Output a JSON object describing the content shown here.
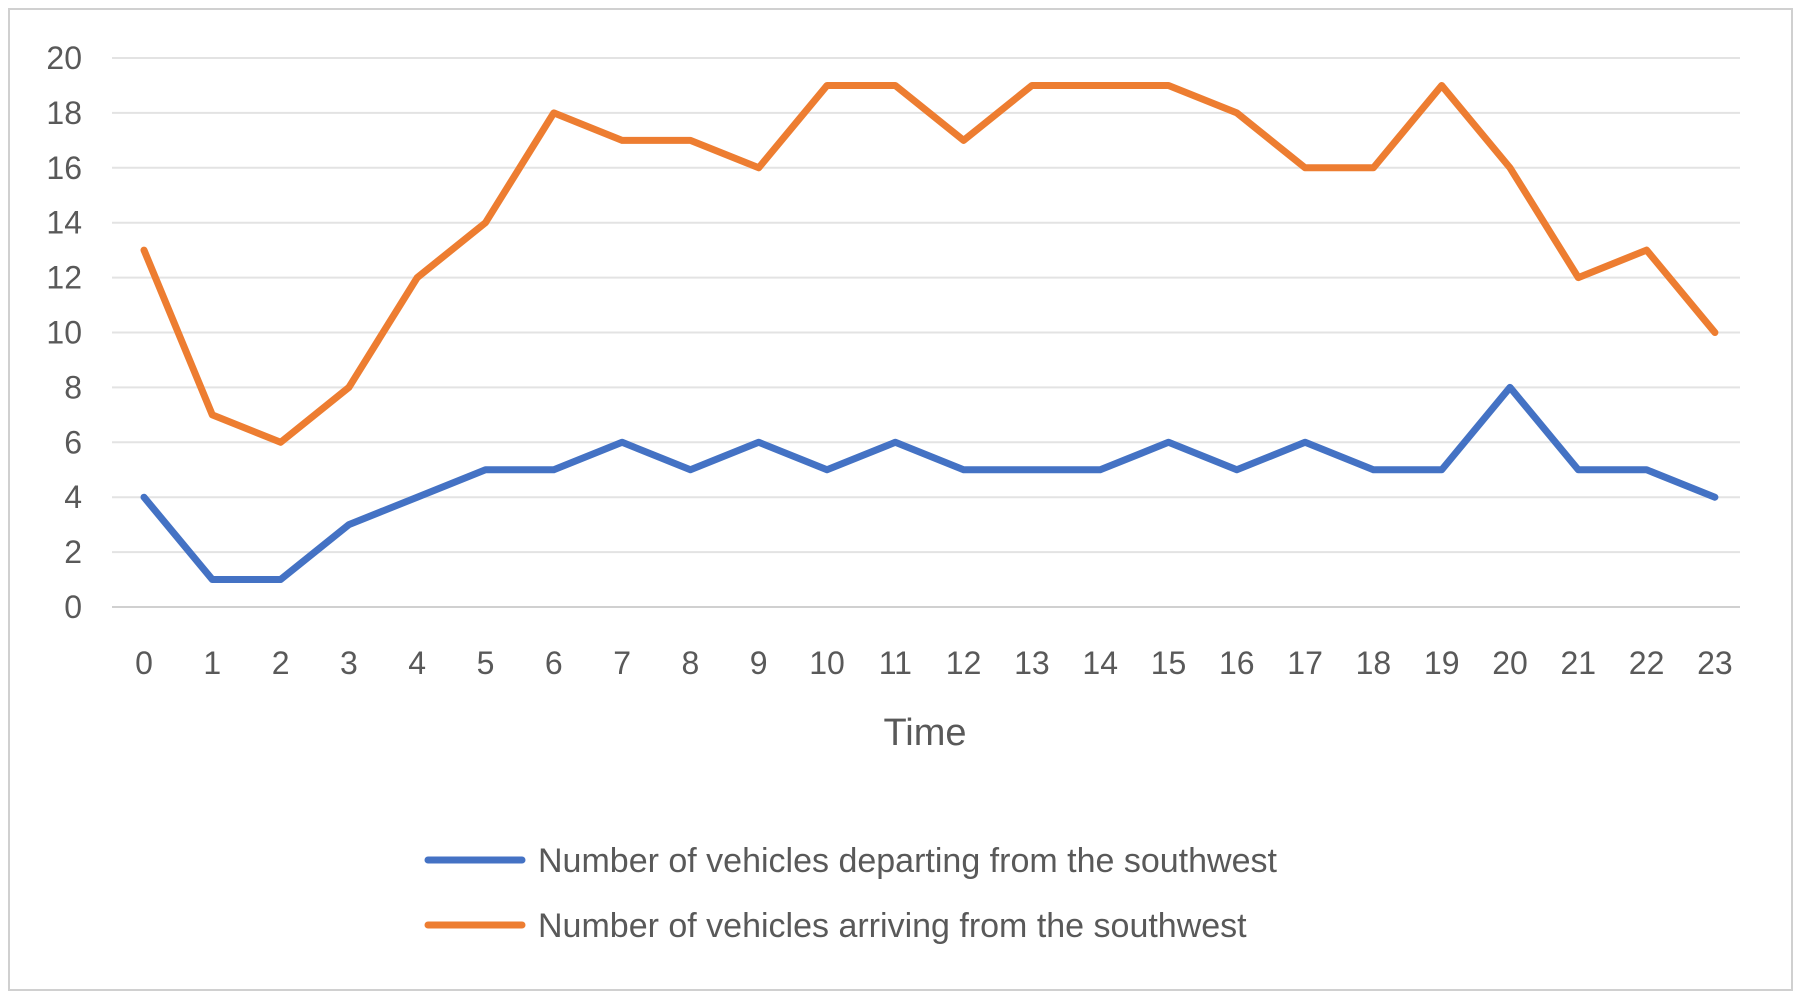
{
  "chart_data": {
    "type": "line",
    "title": "",
    "xlabel": "Time",
    "ylabel": "",
    "categories": [
      "0",
      "1",
      "2",
      "3",
      "4",
      "5",
      "6",
      "7",
      "8",
      "9",
      "10",
      "11",
      "12",
      "13",
      "14",
      "15",
      "16",
      "17",
      "18",
      "19",
      "20",
      "21",
      "22",
      "23"
    ],
    "ylim": [
      0,
      20
    ],
    "yticks": [
      "0",
      "2",
      "4",
      "6",
      "8",
      "10",
      "12",
      "14",
      "16",
      "18",
      "20"
    ],
    "grid": true,
    "legend_position": "bottom",
    "series": [
      {
        "name": "Number of vehicles departing from the southwest",
        "color": "#4472c4",
        "values": [
          4,
          1,
          1,
          3,
          4,
          5,
          5,
          6,
          5,
          6,
          5,
          6,
          5,
          5,
          5,
          6,
          5,
          6,
          5,
          5,
          8,
          5,
          5,
          4
        ]
      },
      {
        "name": "Number of vehicles arriving from the southwest",
        "color": "#ed7d31",
        "values": [
          13,
          7,
          6,
          8,
          12,
          14,
          18,
          17,
          17,
          16,
          19,
          19,
          17,
          19,
          19,
          19,
          18,
          16,
          16,
          19,
          16,
          12,
          13,
          10
        ]
      }
    ]
  }
}
